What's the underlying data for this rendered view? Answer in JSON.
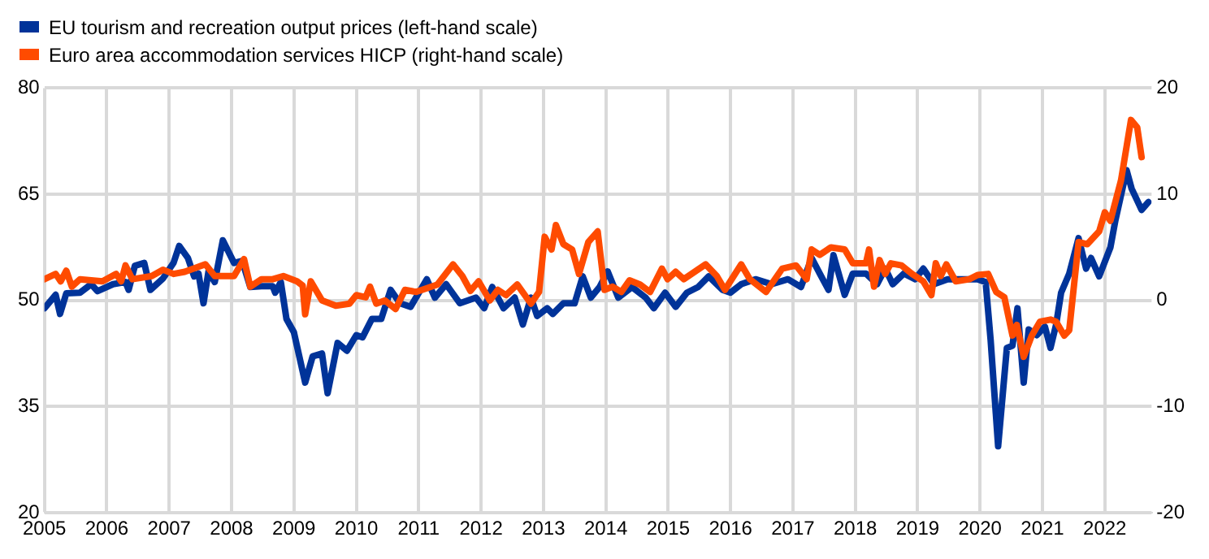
{
  "chart_data": {
    "type": "line",
    "legend": "top left",
    "grid": true,
    "marker": "none",
    "line_style": "solid",
    "xlim": [
      2005,
      2022.75
    ],
    "xticks": [
      {
        "value": 2005,
        "label": "2005"
      },
      {
        "value": 2006,
        "label": "2006"
      },
      {
        "value": 2007,
        "label": "2007"
      },
      {
        "value": 2008,
        "label": "2008"
      },
      {
        "value": 2009,
        "label": "2009"
      },
      {
        "value": 2010,
        "label": "2010"
      },
      {
        "value": 2011,
        "label": "2011"
      },
      {
        "value": 2012,
        "label": "2012"
      },
      {
        "value": 2013,
        "label": "2013"
      },
      {
        "value": 2014,
        "label": "2014"
      },
      {
        "value": 2015,
        "label": "2015"
      },
      {
        "value": 2016,
        "label": "2016"
      },
      {
        "value": 2017,
        "label": "2017"
      },
      {
        "value": 2018,
        "label": "2018"
      },
      {
        "value": 2019,
        "label": "2019"
      },
      {
        "value": 2020,
        "label": "2020"
      },
      {
        "value": 2021,
        "label": "2021"
      },
      {
        "value": 2022,
        "label": "2022"
      }
    ],
    "ylim": [
      20,
      80
    ],
    "yticks": [
      20,
      35,
      50,
      65,
      80
    ],
    "y2lim": [
      -20,
      20
    ],
    "y2ticks": [
      -20,
      -10,
      0,
      10,
      20
    ],
    "series": [
      {
        "name": "EU tourism and recreation output prices (left-hand scale)",
        "color": "#003399",
        "axis": "y",
        "x": [
          2005.0,
          2005.18,
          2005.25,
          2005.35,
          2005.57,
          2005.75,
          2005.85,
          2006.1,
          2006.3,
          2006.35,
          2006.45,
          2006.6,
          2006.7,
          2006.9,
          2007.07,
          2007.16,
          2007.3,
          2007.4,
          2007.47,
          2007.55,
          2007.63,
          2007.73,
          2007.86,
          2008.04,
          2008.17,
          2008.3,
          2008.48,
          2008.66,
          2008.7,
          2008.79,
          2008.88,
          2009.0,
          2009.18,
          2009.3,
          2009.45,
          2009.54,
          2009.7,
          2009.85,
          2010.0,
          2010.1,
          2010.25,
          2010.4,
          2010.55,
          2010.7,
          2010.87,
          2011.13,
          2011.26,
          2011.44,
          2011.66,
          2011.92,
          2012.05,
          2012.18,
          2012.36,
          2012.54,
          2012.67,
          2012.8,
          2012.9,
          2013.06,
          2013.15,
          2013.32,
          2013.5,
          2013.63,
          2013.76,
          2013.9,
          2014.03,
          2014.2,
          2014.42,
          2014.64,
          2014.77,
          2014.95,
          2015.12,
          2015.3,
          2015.48,
          2015.65,
          2015.87,
          2016.0,
          2016.17,
          2016.4,
          2016.66,
          2016.92,
          2017.13,
          2017.3,
          2017.43,
          2017.57,
          2017.65,
          2017.83,
          2017.96,
          2018.17,
          2018.35,
          2018.48,
          2018.6,
          2018.78,
          2018.96,
          2019.09,
          2019.26,
          2019.48,
          2019.74,
          2019.96,
          2020.09,
          2020.17,
          2020.29,
          2020.43,
          2020.52,
          2020.6,
          2020.7,
          2020.78,
          2020.91,
          2021.04,
          2021.13,
          2021.22,
          2021.3,
          2021.43,
          2021.58,
          2021.7,
          2021.78,
          2021.91,
          2022.09,
          2022.17,
          2022.35,
          2022.43,
          2022.59,
          2022.7
        ],
        "values": [
          48.9,
          50.8,
          48.1,
          51,
          51.1,
          52.3,
          51.3,
          52.3,
          52.6,
          51.5,
          54.9,
          55.3,
          51.5,
          53.1,
          55.3,
          57.7,
          56,
          53.4,
          53.8,
          49.6,
          54.1,
          52.6,
          58.5,
          55.3,
          55.6,
          51.9,
          52,
          52,
          51.1,
          52.6,
          47.4,
          45.5,
          38.4,
          42.1,
          42.5,
          36.9,
          44,
          42.9,
          45.1,
          44.8,
          47.4,
          47.4,
          51.5,
          49.6,
          49.1,
          53,
          50.4,
          52.3,
          49.6,
          50.4,
          48.9,
          51.9,
          48.9,
          50.4,
          46.6,
          50.4,
          47.8,
          48.9,
          48.1,
          49.6,
          49.6,
          53.4,
          50.4,
          51.9,
          54.1,
          50.4,
          51.9,
          50.4,
          48.9,
          51.1,
          49.1,
          51.1,
          51.9,
          53.4,
          51.5,
          51.1,
          52.3,
          53,
          52.3,
          53,
          51.9,
          56,
          53.8,
          51.5,
          56.4,
          50.8,
          53.8,
          53.8,
          52.3,
          54.5,
          52.3,
          53.8,
          53,
          54.5,
          52.3,
          53,
          53,
          53,
          52.6,
          44.4,
          29.4,
          43.3,
          43.6,
          48.9,
          38.4,
          45.9,
          45.1,
          46.3,
          43.3,
          46.6,
          51.1,
          53.8,
          58.8,
          54.5,
          56,
          53.4,
          57.5,
          61.3,
          68.4,
          65.8,
          62.8,
          63.9
        ]
      },
      {
        "name": "Euro area accommodation services HICP (right-hand scale)",
        "color": "#ff4b00",
        "axis": "y2",
        "x": [
          2005.0,
          2005.18,
          2005.26,
          2005.35,
          2005.44,
          2005.57,
          2005.93,
          2006.15,
          2006.23,
          2006.3,
          2006.41,
          2006.72,
          2006.9,
          2007.07,
          2007.25,
          2007.58,
          2007.73,
          2008.04,
          2008.2,
          2008.3,
          2008.48,
          2008.66,
          2008.83,
          2009.05,
          2009.14,
          2009.18,
          2009.27,
          2009.45,
          2009.67,
          2009.89,
          2010.0,
          2010.15,
          2010.22,
          2010.32,
          2010.46,
          2010.63,
          2010.78,
          2010.96,
          2011.3,
          2011.55,
          2011.7,
          2011.83,
          2011.96,
          2012.14,
          2012.27,
          2012.4,
          2012.58,
          2012.8,
          2012.93,
          2013.02,
          2013.13,
          2013.2,
          2013.32,
          2013.46,
          2013.57,
          2013.72,
          2013.87,
          2013.98,
          2014.11,
          2014.25,
          2014.38,
          2014.55,
          2014.71,
          2014.9,
          2014.99,
          2015.12,
          2015.25,
          2015.6,
          2015.78,
          2015.91,
          2016.17,
          2016.31,
          2016.57,
          2016.83,
          2017.05,
          2017.22,
          2017.3,
          2017.43,
          2017.61,
          2017.83,
          2017.96,
          2018.17,
          2018.22,
          2018.3,
          2018.39,
          2018.48,
          2018.57,
          2018.74,
          2018.91,
          2019.09,
          2019.22,
          2019.29,
          2019.37,
          2019.46,
          2019.61,
          2019.83,
          2019.96,
          2020.13,
          2020.26,
          2020.39,
          2020.52,
          2020.59,
          2020.7,
          2020.83,
          2020.96,
          2021.13,
          2021.22,
          2021.35,
          2021.43,
          2021.58,
          2021.72,
          2021.91,
          2022.0,
          2022.09,
          2022.26,
          2022.42,
          2022.52,
          2022.59
        ],
        "values": [
          2,
          2.5,
          1.8,
          2.8,
          1.3,
          2,
          1.8,
          2.5,
          1.8,
          3.3,
          2,
          2.3,
          2.9,
          2.5,
          2.7,
          3.4,
          2.3,
          2.3,
          3.9,
          1.3,
          2,
          2,
          2.3,
          1.8,
          1.4,
          -1.3,
          1.8,
          0,
          -0.5,
          -0.3,
          0.5,
          0.3,
          1.3,
          -0.3,
          0,
          -0.8,
          1,
          0.8,
          1.5,
          3.4,
          2.3,
          0.9,
          1.8,
          0,
          1,
          0.5,
          1.5,
          -0.3,
          0.8,
          6,
          4.8,
          7.1,
          5.3,
          4.8,
          2.5,
          5.5,
          6.5,
          1,
          1.3,
          0.8,
          1.9,
          1.5,
          0.8,
          3,
          2,
          2.7,
          2,
          3.4,
          2.3,
          1,
          3.4,
          2,
          0.8,
          3,
          3.3,
          2,
          4.8,
          4.3,
          5,
          4.8,
          3.5,
          3.5,
          4.8,
          1.3,
          3.8,
          2.5,
          3.5,
          3.3,
          2.5,
          1.8,
          0.5,
          3.5,
          2.3,
          3.4,
          1.8,
          2,
          2.4,
          2.5,
          0.8,
          0.3,
          -3.3,
          -2.3,
          -5.3,
          -3.3,
          -2,
          -1.8,
          -2,
          -3.3,
          -2.8,
          5.5,
          5.3,
          6.5,
          8.3,
          7.5,
          11.3,
          17,
          16.3,
          13.5
        ]
      }
    ]
  }
}
